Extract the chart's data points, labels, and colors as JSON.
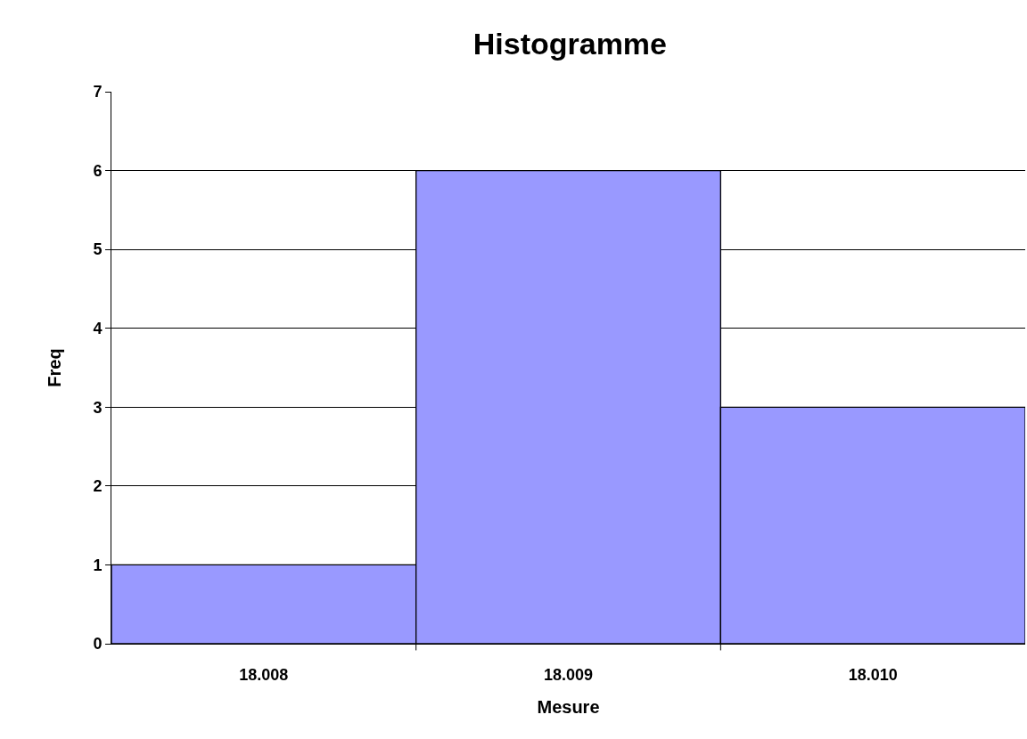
{
  "chart_data": {
    "type": "bar",
    "title": "Histogramme",
    "xlabel": "Mesure",
    "ylabel": "Freq",
    "categories": [
      "18.008",
      "18.009",
      "18.010"
    ],
    "values": [
      1,
      6,
      3
    ],
    "color": "#9999ff",
    "ylim": [
      0,
      7
    ],
    "yticks": [
      0,
      1,
      2,
      3,
      4,
      5,
      6,
      7
    ],
    "grid": "y",
    "legend": false
  }
}
